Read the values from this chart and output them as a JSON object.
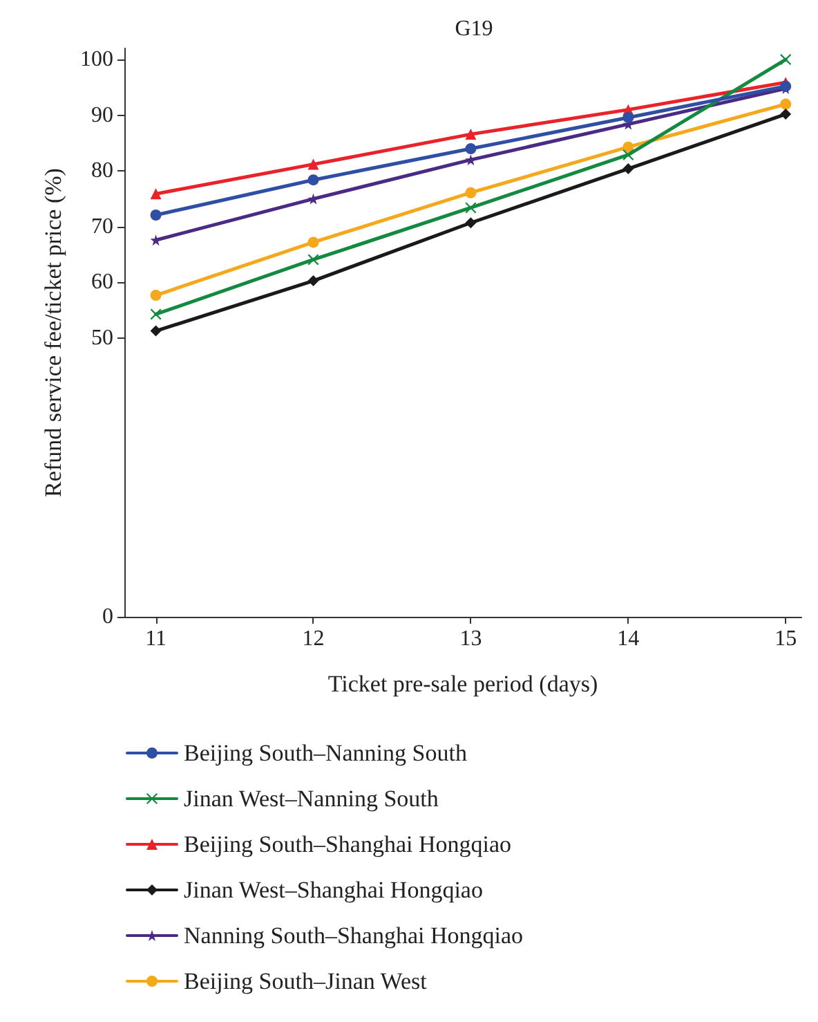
{
  "chart_data": {
    "type": "line",
    "title": "G19",
    "xlabel": "Ticket pre-sale period (days)",
    "ylabel": "Refund service fee/ticket price (%)",
    "x": [
      11,
      12,
      13,
      14,
      15
    ],
    "xlim": [
      10.8,
      15.1
    ],
    "xticks": [
      11,
      12,
      13,
      14,
      15
    ],
    "ylim": [
      0,
      102
    ],
    "yticks": [
      0,
      50,
      60,
      70,
      80,
      90,
      100
    ],
    "grid": false,
    "legend": "bottom",
    "line_style": "solid",
    "series": [
      {
        "name": "Beijing South–Nanning South",
        "color": "#2e4fa3",
        "marker": "circle",
        "values": [
          72.1,
          78.4,
          84,
          89.6,
          95.2
        ]
      },
      {
        "name": "Jinan West–Nanning South",
        "color": "#138a3f",
        "marker": "cross",
        "values": [
          54.3,
          64.1,
          73.4,
          82.9,
          100
        ]
      },
      {
        "name": "Beijing South–Shanghai Hongqiao",
        "color": "#e8232a",
        "marker": "triangle",
        "values": [
          75.9,
          81.2,
          86.6,
          91,
          95.9
        ]
      },
      {
        "name": "Jinan West–Shanghai Hongqiao",
        "color": "#1a1a1a",
        "marker": "diamond",
        "values": [
          51.3,
          60.3,
          70.7,
          80.4,
          90.2
        ]
      },
      {
        "name": "Nanning South–Shanghai Hongqiao",
        "color": "#4b2a85",
        "marker": "star",
        "values": [
          67.6,
          75,
          82,
          88.4,
          94.8
        ]
      },
      {
        "name": "Beijing South–Jinan West",
        "color": "#f5a81c",
        "marker": "circle",
        "values": [
          57.7,
          67.2,
          76.1,
          84.3,
          92
        ]
      }
    ]
  }
}
